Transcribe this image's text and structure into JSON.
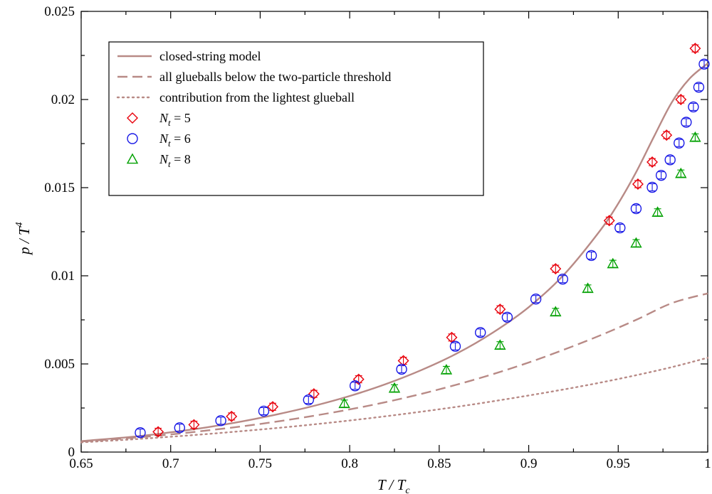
{
  "chart_data": {
    "type": "scatter",
    "xlabel": {
      "main": "T / T",
      "sub": "c"
    },
    "ylabel": {
      "main": "p / T",
      "sup": "4"
    },
    "xlim": [
      0.65,
      1.0
    ],
    "ylim": [
      0,
      0.025
    ],
    "xticks": [
      "0.65",
      "0.7",
      "0.75",
      "0.8",
      "0.85",
      "0.9",
      "0.95",
      "1"
    ],
    "yticks": [
      "0",
      "0.005",
      "0.01",
      "0.015",
      "0.02",
      "0.025"
    ],
    "grid": false,
    "legend_position": "top-left",
    "curves": [
      {
        "name": "closed-string model",
        "style": "solid",
        "color": "#b88a86",
        "x": [
          0.65,
          0.68,
          0.7,
          0.72,
          0.74,
          0.76,
          0.78,
          0.8,
          0.82,
          0.84,
          0.86,
          0.88,
          0.9,
          0.92,
          0.94,
          0.95,
          0.96,
          0.97,
          0.98,
          0.99,
          1.0
        ],
        "y": [
          0.00062,
          0.00088,
          0.00112,
          0.0014,
          0.00174,
          0.00215,
          0.00262,
          0.00318,
          0.00385,
          0.00465,
          0.0056,
          0.00678,
          0.00822,
          0.0101,
          0.01258,
          0.0141,
          0.01588,
          0.0179,
          0.01985,
          0.0212,
          0.02205
        ]
      },
      {
        "name": "all glueballs below the two-particle threshold",
        "style": "dashed",
        "color": "#b88a86",
        "x": [
          0.65,
          0.68,
          0.7,
          0.72,
          0.74,
          0.76,
          0.78,
          0.8,
          0.82,
          0.84,
          0.86,
          0.88,
          0.9,
          0.92,
          0.94,
          0.96,
          0.98,
          1.0
        ],
        "y": [
          0.0006,
          0.00082,
          0.001,
          0.00122,
          0.00146,
          0.00174,
          0.00206,
          0.00242,
          0.00283,
          0.0033,
          0.00383,
          0.00442,
          0.00508,
          0.00582,
          0.00662,
          0.0075,
          0.00845,
          0.009
        ]
      },
      {
        "name": "contribution from the lightest glueball",
        "style": "dotted",
        "color": "#b88a86",
        "x": [
          0.65,
          0.68,
          0.7,
          0.72,
          0.74,
          0.76,
          0.78,
          0.8,
          0.82,
          0.84,
          0.86,
          0.88,
          0.9,
          0.92,
          0.94,
          0.96,
          0.98,
          1.0
        ],
        "y": [
          0.00055,
          0.00073,
          0.00087,
          0.00102,
          0.00119,
          0.00137,
          0.00157,
          0.00179,
          0.00203,
          0.00229,
          0.00257,
          0.00288,
          0.00321,
          0.00356,
          0.00394,
          0.00436,
          0.00482,
          0.00535
        ]
      }
    ],
    "series": [
      {
        "name": "N",
        "name_sub": "t",
        "name_suffix": " = 5",
        "marker": "diamond",
        "color": "#e8000b",
        "x": [
          0.693,
          0.713,
          0.734,
          0.757,
          0.78,
          0.805,
          0.83,
          0.857,
          0.884,
          0.915,
          0.945,
          0.961,
          0.969,
          0.977,
          0.985,
          0.993
        ],
        "y": [
          0.00115,
          0.00155,
          0.00202,
          0.00257,
          0.0033,
          0.00413,
          0.00518,
          0.0065,
          0.0081,
          0.0104,
          0.01313,
          0.0152,
          0.01645,
          0.01798,
          0.02,
          0.0229
        ]
      },
      {
        "name": "N",
        "name_sub": "t",
        "name_suffix": " = 6",
        "marker": "circle",
        "color": "#1a1ae6",
        "x": [
          0.683,
          0.705,
          0.728,
          0.752,
          0.777,
          0.803,
          0.829,
          0.859,
          0.873,
          0.888,
          0.904,
          0.919,
          0.935,
          0.951,
          0.96,
          0.969,
          0.974,
          0.979,
          0.984,
          0.988,
          0.992,
          0.995,
          0.998
        ],
        "y": [
          0.0011,
          0.00138,
          0.00178,
          0.00232,
          0.00296,
          0.00376,
          0.0047,
          0.006,
          0.00678,
          0.00765,
          0.00868,
          0.00981,
          0.01115,
          0.01272,
          0.01381,
          0.01502,
          0.0157,
          0.01658,
          0.01753,
          0.01871,
          0.01958,
          0.0207,
          0.02201
        ]
      },
      {
        "name": "N",
        "name_sub": "t",
        "name_suffix": " = 8",
        "marker": "triangle",
        "color": "#00a000",
        "x": [
          0.797,
          0.825,
          0.854,
          0.884,
          0.915,
          0.933,
          0.947,
          0.96,
          0.972,
          0.985,
          0.993
        ],
        "y": [
          0.00275,
          0.00362,
          0.00466,
          0.00606,
          0.00795,
          0.00928,
          0.01068,
          0.01185,
          0.0136,
          0.0158,
          0.01785
        ]
      }
    ]
  }
}
